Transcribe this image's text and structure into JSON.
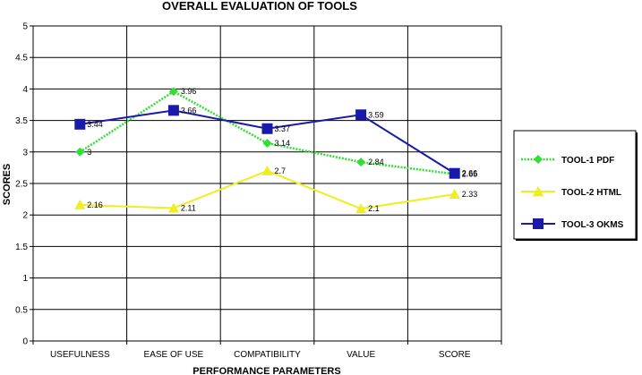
{
  "chart_data": {
    "type": "line",
    "title": "OVERALL EVALUATION OF TOOLS",
    "xlabel": "PERFORMANCE PARAMETERS",
    "ylabel": "SCORES",
    "categories": [
      "USEFULNESS",
      "EASE OF USE",
      "COMPATIBILITY",
      "VALUE",
      "SCORE"
    ],
    "ylim": [
      0,
      5
    ],
    "yticks": [
      "0",
      "0.5",
      "1",
      "1.5",
      "2",
      "2.5",
      "3",
      "3.5",
      "4",
      "4.5",
      "5"
    ],
    "grid": true,
    "legend_position": "right",
    "series": [
      {
        "name": "TOOL-1 PDF",
        "color": "#33dd33",
        "marker": "diamond",
        "line_style": "dotted",
        "values": [
          3,
          3.96,
          3.14,
          2.84,
          2.65
        ],
        "labels": [
          "3",
          "3.96",
          "3.14",
          "2.84",
          "2.65"
        ]
      },
      {
        "name": "TOOL-2 HTML",
        "color": "#eeee22",
        "marker": "triangle",
        "line_style": "solid",
        "values": [
          2.16,
          2.11,
          2.7,
          2.1,
          2.33
        ],
        "labels": [
          "2.16",
          "2.11",
          "2.7",
          "2.1",
          "2.33"
        ]
      },
      {
        "name": "TOOL-3 OKMS",
        "color": "#1a1aaa",
        "marker": "square",
        "line_style": "solid",
        "values": [
          3.44,
          3.66,
          3.37,
          3.59,
          2.66
        ],
        "labels": [
          "3.44",
          "3.66",
          "3.37",
          "3.59",
          "2.66"
        ]
      }
    ]
  }
}
